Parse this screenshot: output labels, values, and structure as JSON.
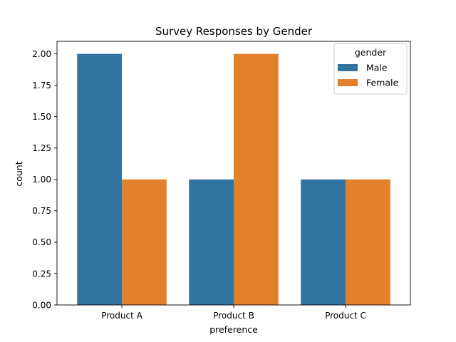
{
  "chart_data": {
    "type": "bar",
    "title": "Survey Responses by Gender",
    "xlabel": "preference",
    "ylabel": "count",
    "categories": [
      "Product A",
      "Product B",
      "Product C"
    ],
    "series": [
      {
        "name": "Male",
        "values": [
          2,
          1,
          1
        ],
        "color": "#3274a1"
      },
      {
        "name": "Female",
        "values": [
          1,
          2,
          1
        ],
        "color": "#e1812c"
      }
    ],
    "ylim": [
      0,
      2.1
    ],
    "yticks": [
      "0.00",
      "0.25",
      "0.50",
      "0.75",
      "1.00",
      "1.25",
      "1.50",
      "1.75",
      "2.00"
    ],
    "legend": {
      "title": "gender",
      "placement": "top-right"
    },
    "grid": false
  }
}
